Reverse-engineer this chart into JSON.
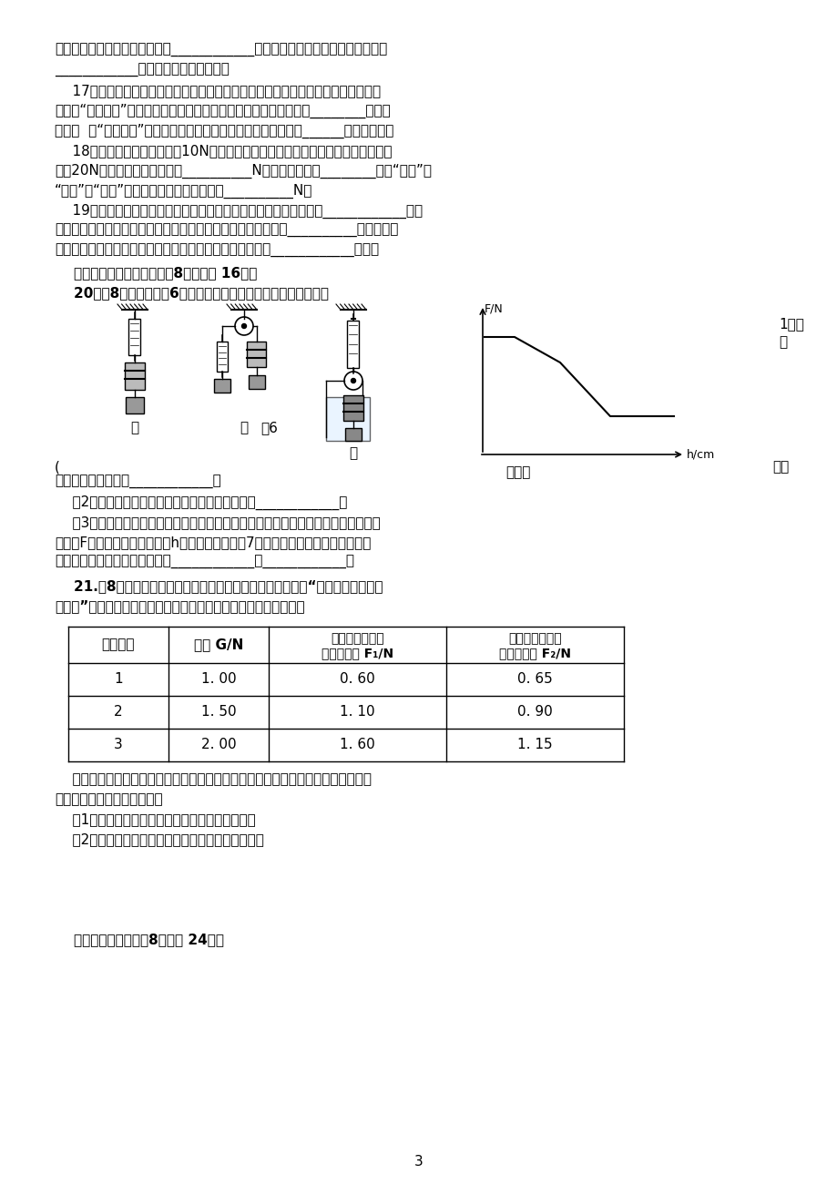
{
  "bg_color": "#ffffff",
  "text_color": "#000000",
  "page_width": 9.2,
  "page_height": 13.0,
  "fn": 11,
  "lh": 22,
  "line1": "不懈的探索和无私的奉献，其中____________结前人研究成果，得出了惯性定律，",
  "line2": "____________首先测出了大气压的値。",
  "line3": "    17、动物的一些器官生长非常特别，这与它们的生存方式、自然环境息息相关，例",
  "line4": "如：有“沙漠之舟”之称的骆驼，脚掌宽而大，是为了在沙漠中行走时________对沙子",
  "line5": "的压强  有“森林医生”之称的啊木鸟，嘴尖而细长，是为了捉虫时______对木的压强。",
  "line6": "    18、一个物体所受的重力为10N，将其全部洸没在水中时，它所排开的水所受的重",
  "line7": "力为20N，此时它所受的浮力为__________N，放手后物体将________（填“上浮”、",
  "line8": "“下沉”或“悬浮”），物体静止时所受浮力为__________N。",
  "line9": "    19、投出去的馓球在重力作用下沿曲线运动，说明力可以使物体的____________发生",
  "line10": "改变；钓球落地时将地面砖出了一个小坑，说明力可以使物体的__________发生改变。",
  "line11": "如果飞行中的钓球受到的所有的力突然消失，那么钓球将做____________运动。",
  "line12": "    三、实验、探究题（每小颉8分，共计 16分）",
  "line13": "    20、（8分）小华用图6所示的实验，探究影响浮力大小的因素。",
  "label_jia": "甲",
  "label_yi": "乙",
  "label_tu6": "图6",
  "label_bing": "丙",
  "label_jia_yi": "甲、乙",
  "graph_label_FN": "F/N",
  "graph_label_hcm": "h/cm",
  "note_right1": "1）进",
  "note_right2": "行",
  "note_right3": "两步",
  "line_q1": "实验，小华的目的是____________；",
  "line_q2": "    （2）进行乙、丙两步实验，小华想验证的猜想是____________；",
  "line_q3": "    （3）小华研究浮力大小与深度的关系时，根据测得的实验数据，作出了弹簧测力计",
  "line_q4": "的示数F与物体下表面所处深度h的关系图像，如图7所示，根据图像可以判断出，此",
  "line_q5": "实验过程中浮力的变化情况是先____________后____________。",
  "line21_head": "    21.（8分）做物理实验要遵循实事求是的原则，小雯同学在“研究定滑轮和动滑",
  "line21_2": "轮特点”的实验中，完成了如图所示的实验，并记录了数据如下表。",
  "table_h1": "实验次数",
  "table_h2": "物重 G/N",
  "table_h3a": "使用定滑轮时测",
  "table_h3b": "力计的示数 F₁/N",
  "table_h4a": "使用动滑轮时测",
  "table_h4b": "力计的示数 F₂/N",
  "table_row1": [
    "1",
    "1. 00",
    "0. 60",
    "0. 65"
  ],
  "table_row2": [
    "2",
    "1. 50",
    "1. 10",
    "0. 90"
  ],
  "table_row3": [
    "3",
    "2. 00",
    "1. 60",
    "1. 15"
  ],
  "line_at1": "    通过分析数据，她觉得与书中的结论偏差较大，你一定也做过这样的实验，回想你",
  "line_at2": "的实验经历，回答下列问题：",
  "line_at3": "    （1）该实验中出现这样结果的主要原因是什么？",
  "line_at4": "    （2）请你对小雯的实验方法提出合理的改进意见。",
  "line_sec4": "    四、计算题（每小颉8分，共 24分）",
  "page_number": "3"
}
